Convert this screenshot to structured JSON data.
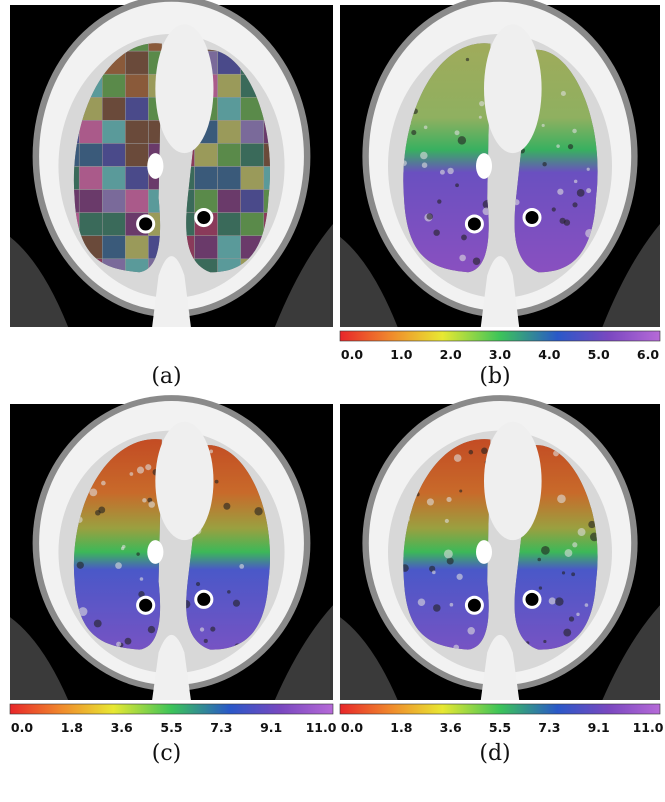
{
  "panels": [
    {
      "caption": "(a)"
    },
    {
      "caption": "(b)",
      "colorbar_ticks": [
        "0.0",
        "1.0",
        "2.0",
        "3.0",
        "4.0",
        "5.0",
        "6.0"
      ]
    },
    {
      "caption": "(c)",
      "colorbar_ticks": [
        "0.0",
        "1.8",
        "3.6",
        "5.5",
        "7.3",
        "9.1",
        "11.0"
      ]
    },
    {
      "caption": "(d)",
      "colorbar_ticks": [
        "0.0",
        "1.8",
        "3.6",
        "5.5",
        "7.3",
        "9.1",
        "11.0"
      ]
    }
  ]
}
